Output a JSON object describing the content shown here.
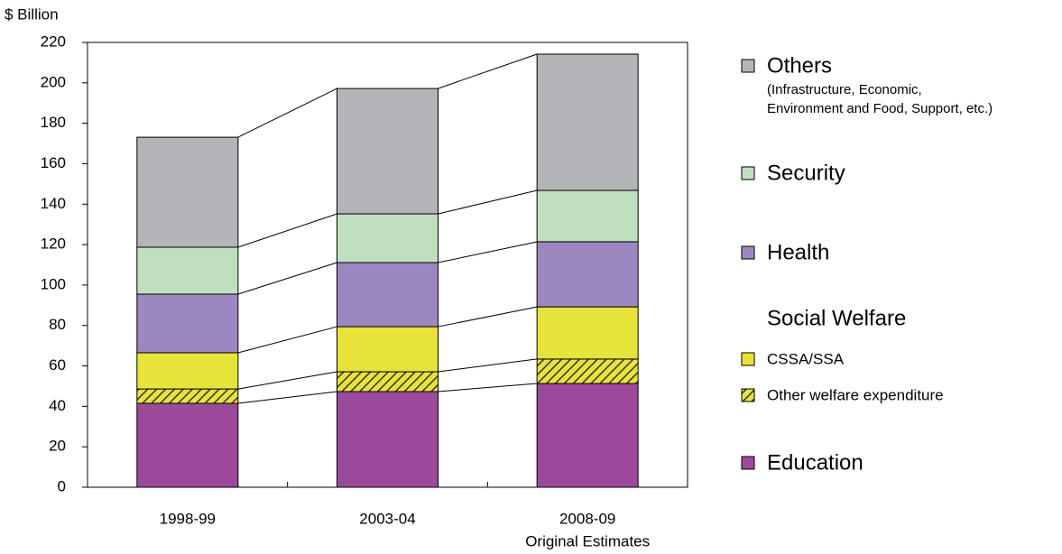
{
  "chart_data": {
    "type": "stacked_bar",
    "y_label": "$ Billion",
    "categories": [
      "1998-99",
      "2003-04",
      "2008-09"
    ],
    "category_sublabels": [
      null,
      null,
      "Original Estimates"
    ],
    "ylim": [
      0,
      220
    ],
    "yticks": [
      0,
      20,
      40,
      60,
      80,
      100,
      120,
      140,
      160,
      180,
      200,
      220
    ],
    "legend_heading": "Social Welfare",
    "series": [
      {
        "name": "Education",
        "color": "#9b4a9b",
        "values": [
          41.5,
          47.3,
          51.3
        ]
      },
      {
        "name": "Other welfare expenditure",
        "color": "#e8e33a",
        "pattern": "hatch",
        "values": [
          7.1,
          9.8,
          12.1
        ]
      },
      {
        "name": "CSSA/SSA",
        "color": "#e8e33a",
        "values": [
          17.9,
          22.3,
          25.8
        ]
      },
      {
        "name": "Health",
        "color": "#9d87c1",
        "values": [
          29.0,
          31.7,
          32.2
        ]
      },
      {
        "name": "Security",
        "color": "#bfe0bf",
        "values": [
          23.2,
          24.1,
          25.4
        ]
      },
      {
        "name": "Others",
        "color": "#b3b5b8",
        "note_lines": [
          "(Infrastructure, Economic,",
          "Environment and Food, Support, etc.)"
        ],
        "values": [
          54.4,
          62.0,
          67.4
        ]
      }
    ]
  }
}
